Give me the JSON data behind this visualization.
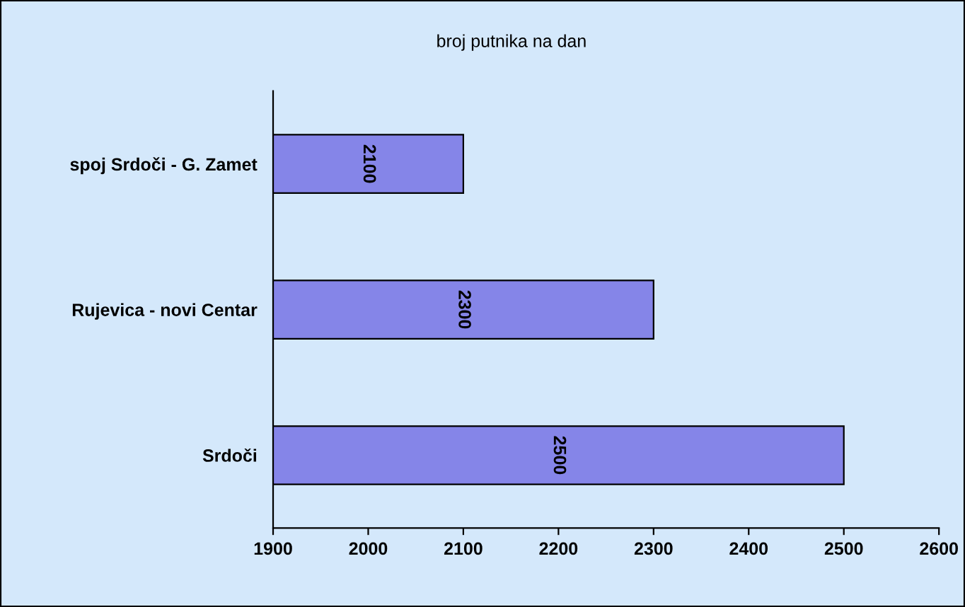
{
  "chart_data": {
    "type": "bar",
    "orientation": "horizontal",
    "title": "broj putnika na dan",
    "categories": [
      "spoj Srdoči - G. Zamet",
      "Rujevica - novi Centar",
      "Srdoči"
    ],
    "values": [
      2100,
      2300,
      2500
    ],
    "color": "#8585e8",
    "xlim": [
      1900,
      2600
    ],
    "xticks": [
      1900,
      2000,
      2100,
      2200,
      2300,
      2400,
      2500,
      2600
    ],
    "data_labels": true,
    "grid": false,
    "legend": false
  }
}
